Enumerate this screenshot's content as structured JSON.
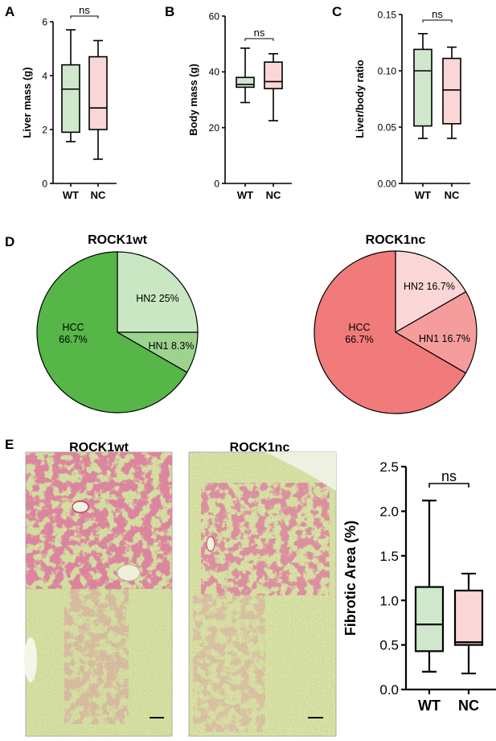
{
  "panels": {
    "A": "A",
    "B": "B",
    "C": "C",
    "D": "D",
    "E": "E"
  },
  "colors": {
    "wt_box": "#cfe8cc",
    "nc_box": "#fbd6d6",
    "wt_pie_main": "#56b648",
    "wt_pie_light": "#c9e7c3",
    "wt_pie_mid": "#9dd38f",
    "nc_pie_main": "#f17a7a",
    "nc_pie_light": "#fbd6d6",
    "nc_pie_mid": "#f59c9c",
    "micrograph_bg": "#d8e2a6",
    "stain": "#b8325a"
  },
  "micrographs": {
    "left_title": "ROCK1wt",
    "right_title": "ROCK1nc"
  },
  "chart_data": [
    {
      "id": "A",
      "type": "box",
      "categories": [
        "WT",
        "NC"
      ],
      "ylabel": "Liver mass (g)",
      "ylim": [
        0,
        6
      ],
      "yticks": [
        "0",
        "2",
        "4",
        "6"
      ],
      "boxes": [
        {
          "category": "WT",
          "min": 1.55,
          "q1": 1.9,
          "median": 3.5,
          "q3": 4.4,
          "max": 5.7
        },
        {
          "category": "NC",
          "min": 0.9,
          "q1": 2.0,
          "median": 2.8,
          "q3": 4.7,
          "max": 5.3
        }
      ],
      "annotation": "ns"
    },
    {
      "id": "B",
      "type": "box",
      "categories": [
        "WT",
        "NC"
      ],
      "ylabel": "Body mass (g)",
      "ylim": [
        0,
        60
      ],
      "yticks": [
        "0",
        "20",
        "40",
        "60"
      ],
      "boxes": [
        {
          "category": "WT",
          "min": 29,
          "q1": 34.5,
          "median": 35.5,
          "q3": 38,
          "max": 48.5
        },
        {
          "category": "NC",
          "min": 22.5,
          "q1": 34,
          "median": 36.5,
          "q3": 43.5,
          "max": 46.5
        }
      ],
      "annotation": "ns"
    },
    {
      "id": "C",
      "type": "box",
      "categories": [
        "WT",
        "NC"
      ],
      "ylabel": "Liver/body ratio",
      "ylim": [
        0,
        0.15
      ],
      "yticks": [
        "0.00",
        "0.05",
        "0.10",
        "0.15"
      ],
      "boxes": [
        {
          "category": "WT",
          "min": 0.04,
          "q1": 0.051,
          "median": 0.1,
          "q3": 0.119,
          "max": 0.133
        },
        {
          "category": "NC",
          "min": 0.04,
          "q1": 0.053,
          "median": 0.083,
          "q3": 0.111,
          "max": 0.121
        }
      ],
      "annotation": "ns"
    },
    {
      "id": "D-wt",
      "type": "pie",
      "title": "ROCK1wt",
      "slices": [
        {
          "label": "HN2 25%",
          "value": 25
        },
        {
          "label": "HN1 8.3%",
          "value": 8.3
        },
        {
          "label_line1": "HCC",
          "label_line2": "66.7%",
          "value": 66.7
        }
      ]
    },
    {
      "id": "D-nc",
      "type": "pie",
      "title": "ROCK1nc",
      "slices": [
        {
          "label": "HN2 16.7%",
          "value": 16.7
        },
        {
          "label": "HN1 16.7%",
          "value": 16.7
        },
        {
          "label_line1": "HCC",
          "label_line2": "66.7%",
          "value": 66.7
        }
      ]
    },
    {
      "id": "E",
      "type": "box",
      "categories": [
        "WT",
        "NC"
      ],
      "ylabel": "Fibrotic Area (%)",
      "ylim": [
        0,
        2.5
      ],
      "yticks": [
        "0.0",
        "0.5",
        "1.0",
        "1.5",
        "2.0",
        "2.5"
      ],
      "boxes": [
        {
          "category": "WT",
          "min": 0.2,
          "q1": 0.43,
          "median": 0.73,
          "q3": 1.15,
          "max": 2.12
        },
        {
          "category": "NC",
          "min": 0.18,
          "q1": 0.5,
          "median": 0.53,
          "q3": 1.11,
          "max": 1.3
        }
      ],
      "annotation": "ns"
    }
  ]
}
